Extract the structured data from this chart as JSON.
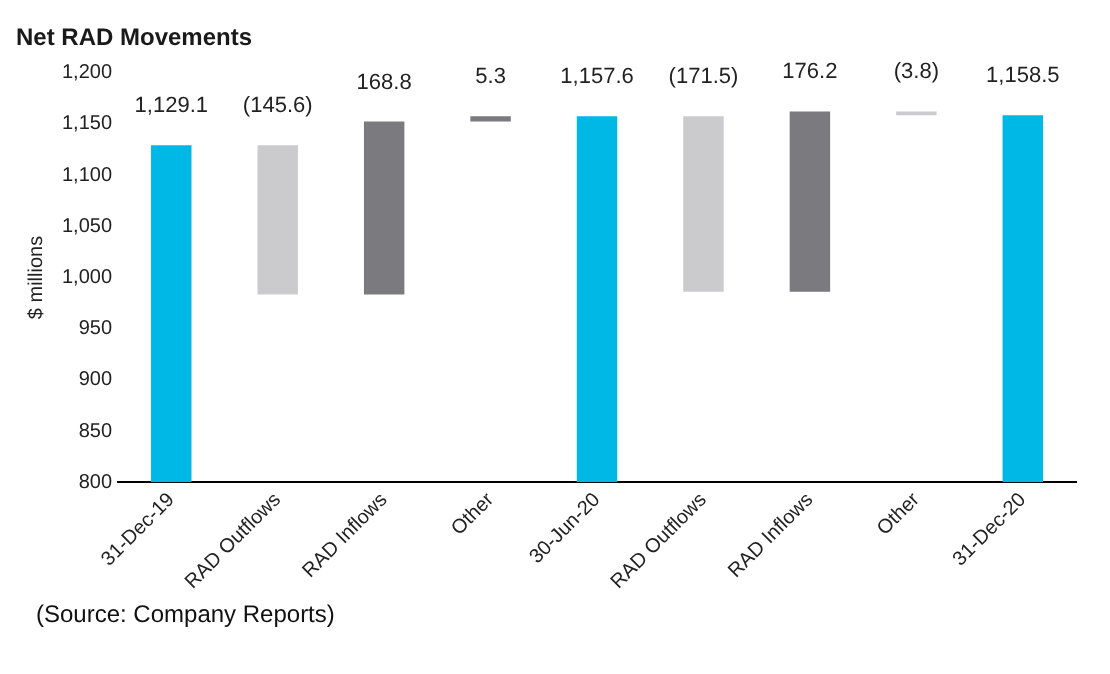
{
  "chart_data": {
    "type": "bar",
    "title": "Net RAD Movements",
    "ylabel": "$ millions",
    "categories": [
      "31-Dec-19",
      "RAD Outflows",
      "RAD Inflows",
      "Other",
      "30-Jun-20",
      "RAD Outflows",
      "RAD Inflows",
      "Other",
      "31-Dec-20"
    ],
    "values": [
      1129.1,
      -145.6,
      168.8,
      5.3,
      1157.6,
      -171.5,
      176.2,
      -3.8,
      1158.5
    ],
    "base": [
      null,
      1129.1,
      983.5,
      1152.3,
      null,
      1157.6,
      986.1,
      1162.3,
      null
    ],
    "colors": [
      "#00b8e6",
      "#cbcbcd",
      "#7b7b7f",
      "#7b7b7f",
      "#00b8e6",
      "#cbcbcd",
      "#7b7b7f",
      "#cbcbcd",
      "#00b8e6"
    ],
    "value_labels": [
      "1,129.1",
      "(145.6)",
      "168.8",
      "5.3",
      "1,157.6",
      "(171.5)",
      "176.2",
      "(3.8)",
      "1,158.5"
    ],
    "ylim": [
      800,
      1200
    ],
    "yticks": [
      800,
      850,
      900,
      950,
      {
        "value": 1000,
        "label": "1,000"
      },
      {
        "value": 1050,
        "label": "1,050"
      },
      {
        "value": 1100,
        "label": "1,100"
      },
      {
        "value": 1150,
        "label": "1,150"
      },
      {
        "value": 1200,
        "label": "1,200"
      }
    ],
    "grid": false,
    "annotations": [
      "(Source:  Company Reports)"
    ]
  }
}
